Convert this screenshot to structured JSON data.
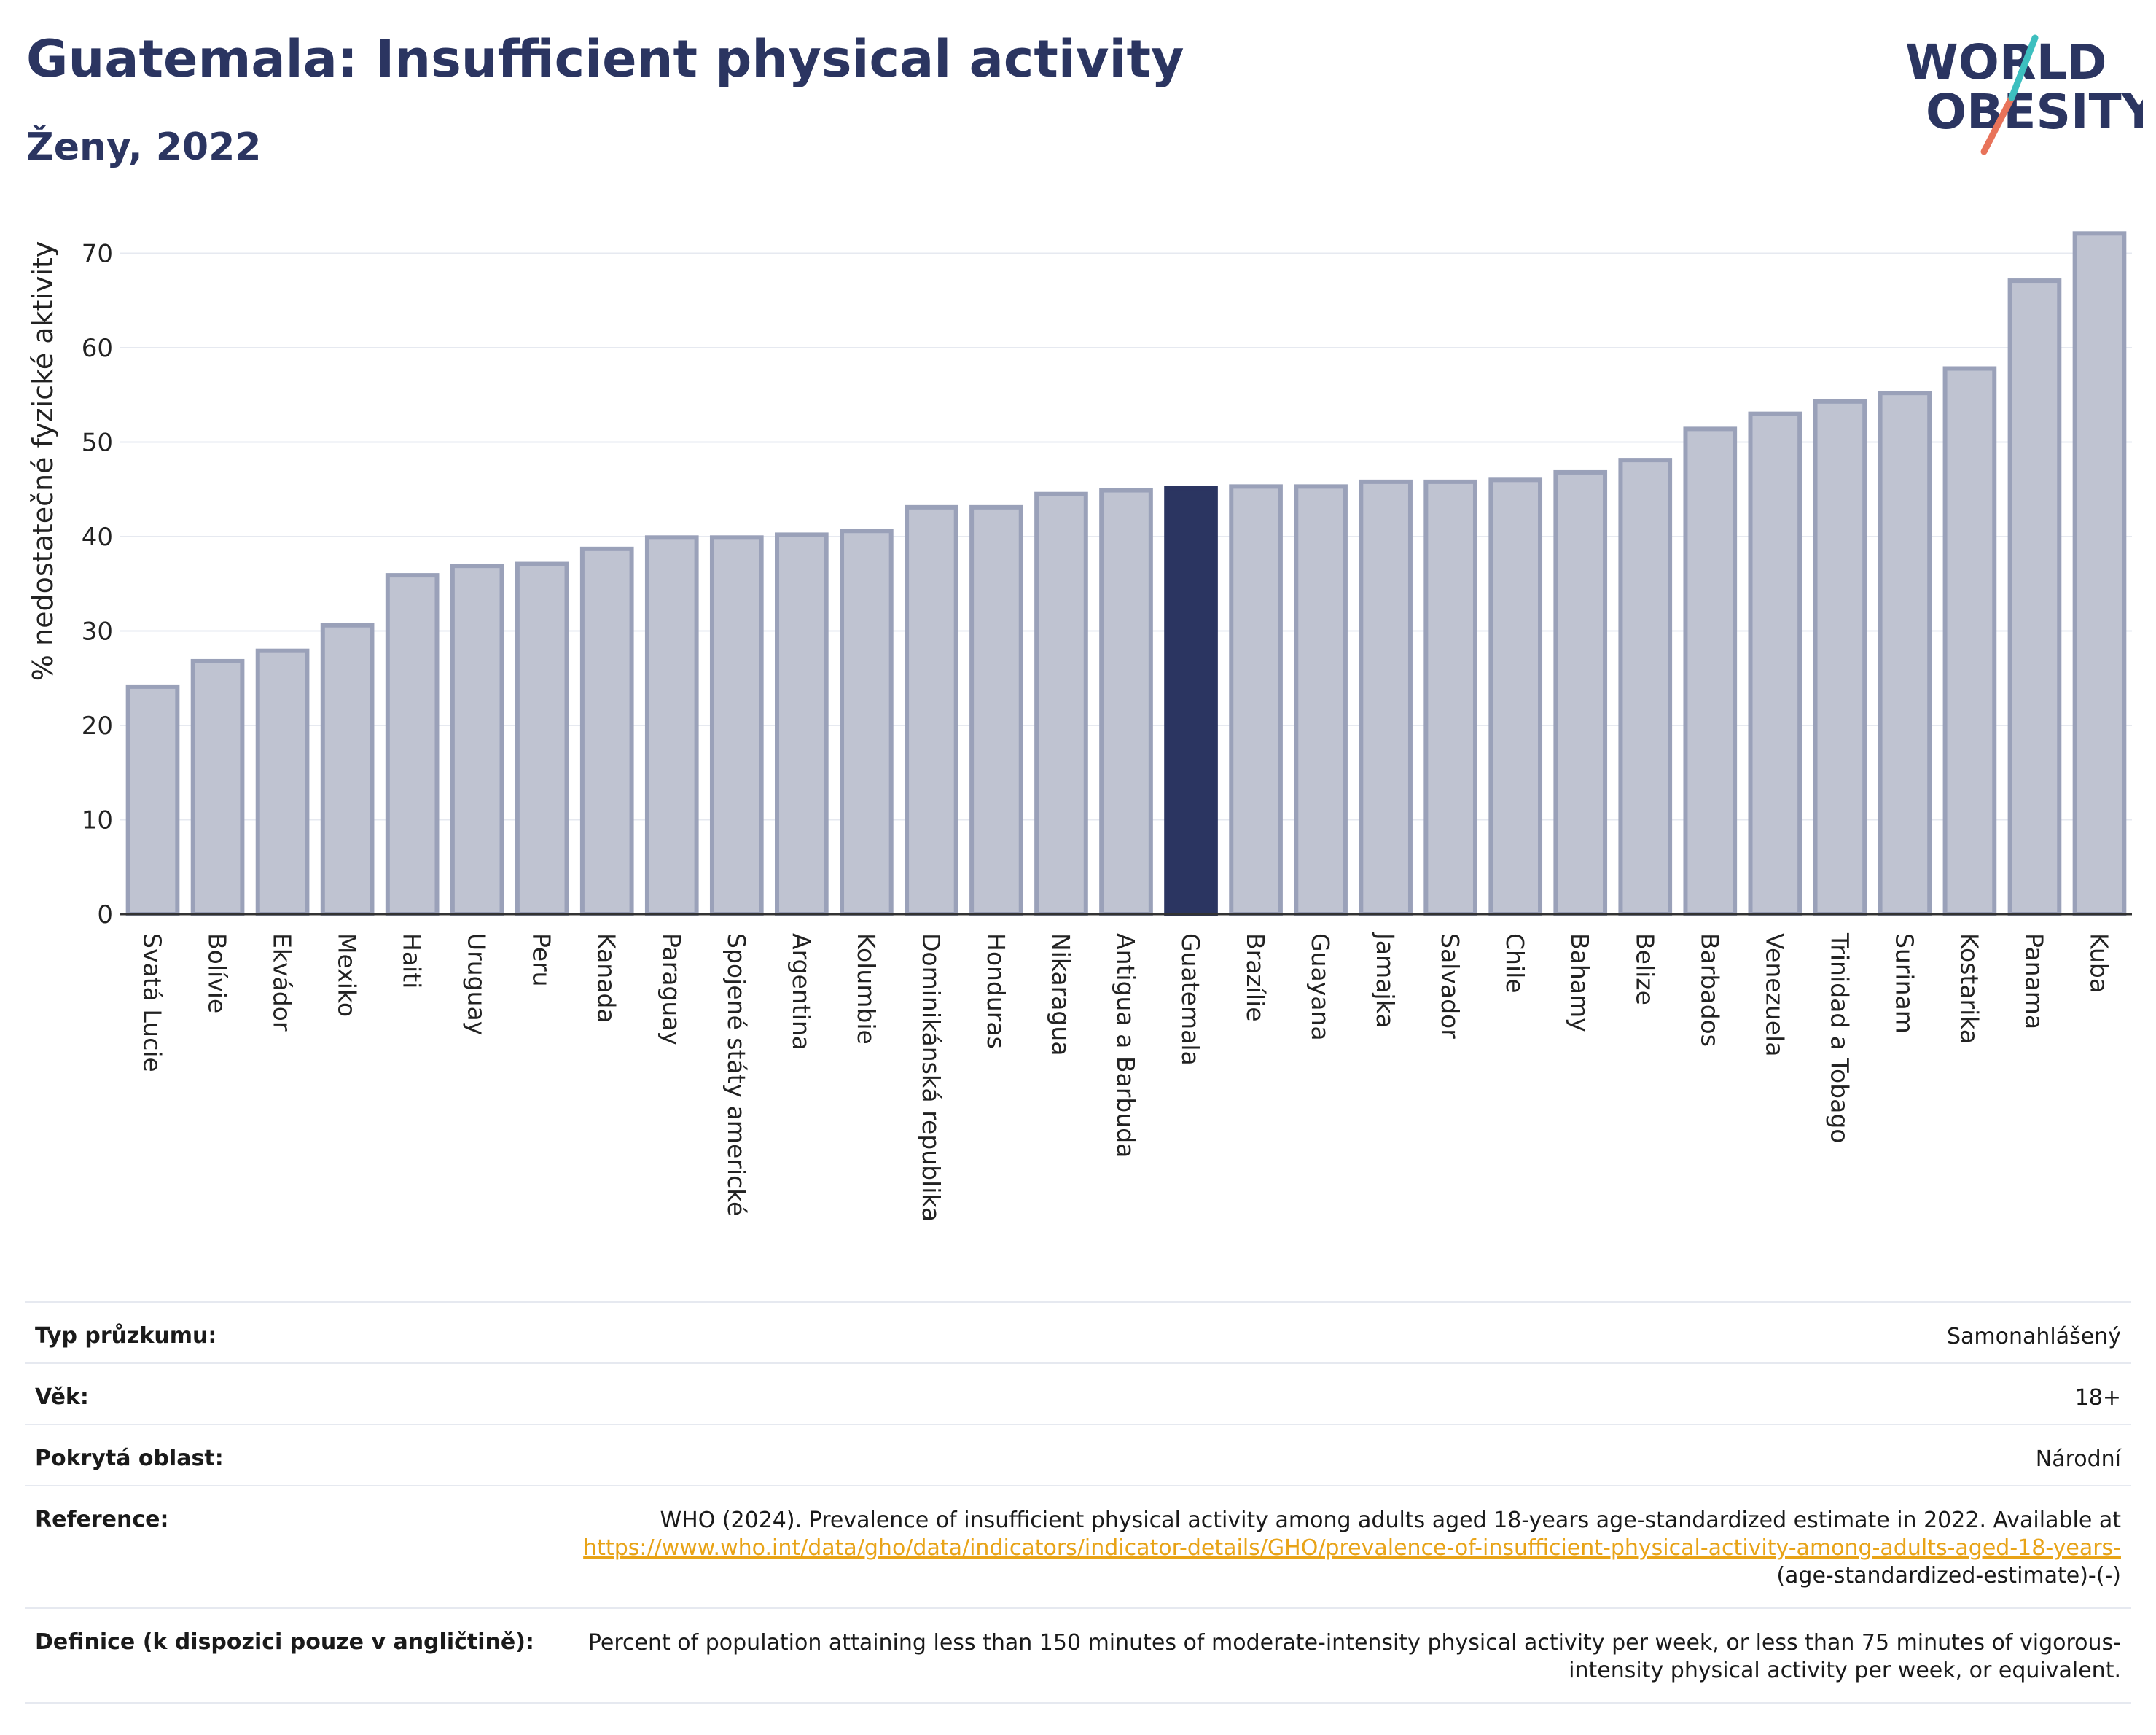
{
  "header": {
    "title": "Guatemala: Insufficient physical activity",
    "subtitle": "Ženy, 2022",
    "logo_line1": "WORLD",
    "logo_line2": "OBESITY"
  },
  "colors": {
    "bar": "#bfc3d1",
    "bar_border": "#9aa1b9",
    "highlight": "#2b3561",
    "grid": "#e6e9f0",
    "accent": "#2b3561"
  },
  "chart_data": {
    "type": "bar",
    "ylabel": "% nedostatečné fyzické aktivity",
    "ylim": [
      0,
      72
    ],
    "yticks": [
      0,
      10,
      20,
      30,
      40,
      50,
      60,
      70
    ],
    "grid": true,
    "highlight": "Guatemala",
    "categories": [
      "Svatá Lucie",
      "Bolívie",
      "Ekvádor",
      "Mexiko",
      "Haiti",
      "Uruguay",
      "Peru",
      "Kanada",
      "Paraguay",
      "Spojené státy americké",
      "Argentina",
      "Kolumbie",
      "Dominikánská republika",
      "Honduras",
      "Nikaragua",
      "Antigua a Barbuda",
      "Guatemala",
      "Brazílie",
      "Guayana",
      "Jamajka",
      "Salvador",
      "Chile",
      "Bahamy",
      "Belize",
      "Barbados",
      "Venezuela",
      "Trinidad a Tobago",
      "Surinam",
      "Kostarika",
      "Panama",
      "Kuba"
    ],
    "values": [
      24.1,
      26.8,
      27.9,
      30.6,
      35.9,
      36.9,
      37.1,
      38.7,
      39.9,
      39.9,
      40.2,
      40.6,
      43.1,
      43.1,
      44.5,
      44.9,
      45.1,
      45.3,
      45.3,
      45.8,
      45.8,
      46.0,
      46.8,
      48.1,
      51.4,
      53.0,
      54.3,
      55.2,
      57.8,
      67.1,
      72.1
    ]
  },
  "meta": {
    "survey_type_label": "Typ průzkumu:",
    "survey_type_value": "Samonahlášený",
    "age_label": "Věk:",
    "age_value": "18+",
    "coverage_label": "Pokrytá oblast:",
    "coverage_value": "Národní",
    "reference_label": "Reference:",
    "reference_text": "WHO (2024). Prevalence of insufficient physical activity among adults aged 18-years age-standardized estimate in 2022. Available at",
    "reference_link": "https://www.who.int/data/gho/data/indicators/indicator-details/GHO/prevalence-of-insufficient-physical-activity-among-adults-aged-18-years-",
    "reference_suffix": "(age-standardized-estimate)-(-)",
    "definition_label": "Definice (k dispozici pouze v angličtině):",
    "definition_text": "Percent of population attaining less than 150 minutes of moderate-intensity physical activity per week, or less than 75 minutes of vigorous-intensity physical activity per week, or equivalent."
  }
}
